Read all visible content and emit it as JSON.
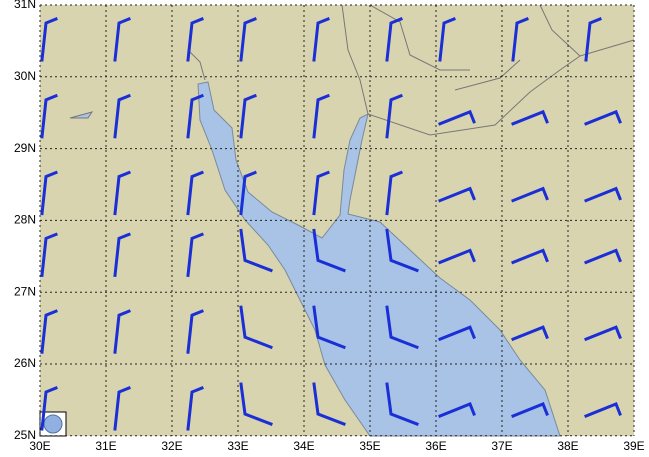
{
  "map": {
    "lon_labels": [
      "30E",
      "31E",
      "32E",
      "33E",
      "34E",
      "35E",
      "36E",
      "37E",
      "38E",
      "39E"
    ],
    "lat_labels": [
      "31N",
      "30N",
      "29N",
      "28N",
      "27N",
      "26N",
      "25N"
    ]
  }
}
